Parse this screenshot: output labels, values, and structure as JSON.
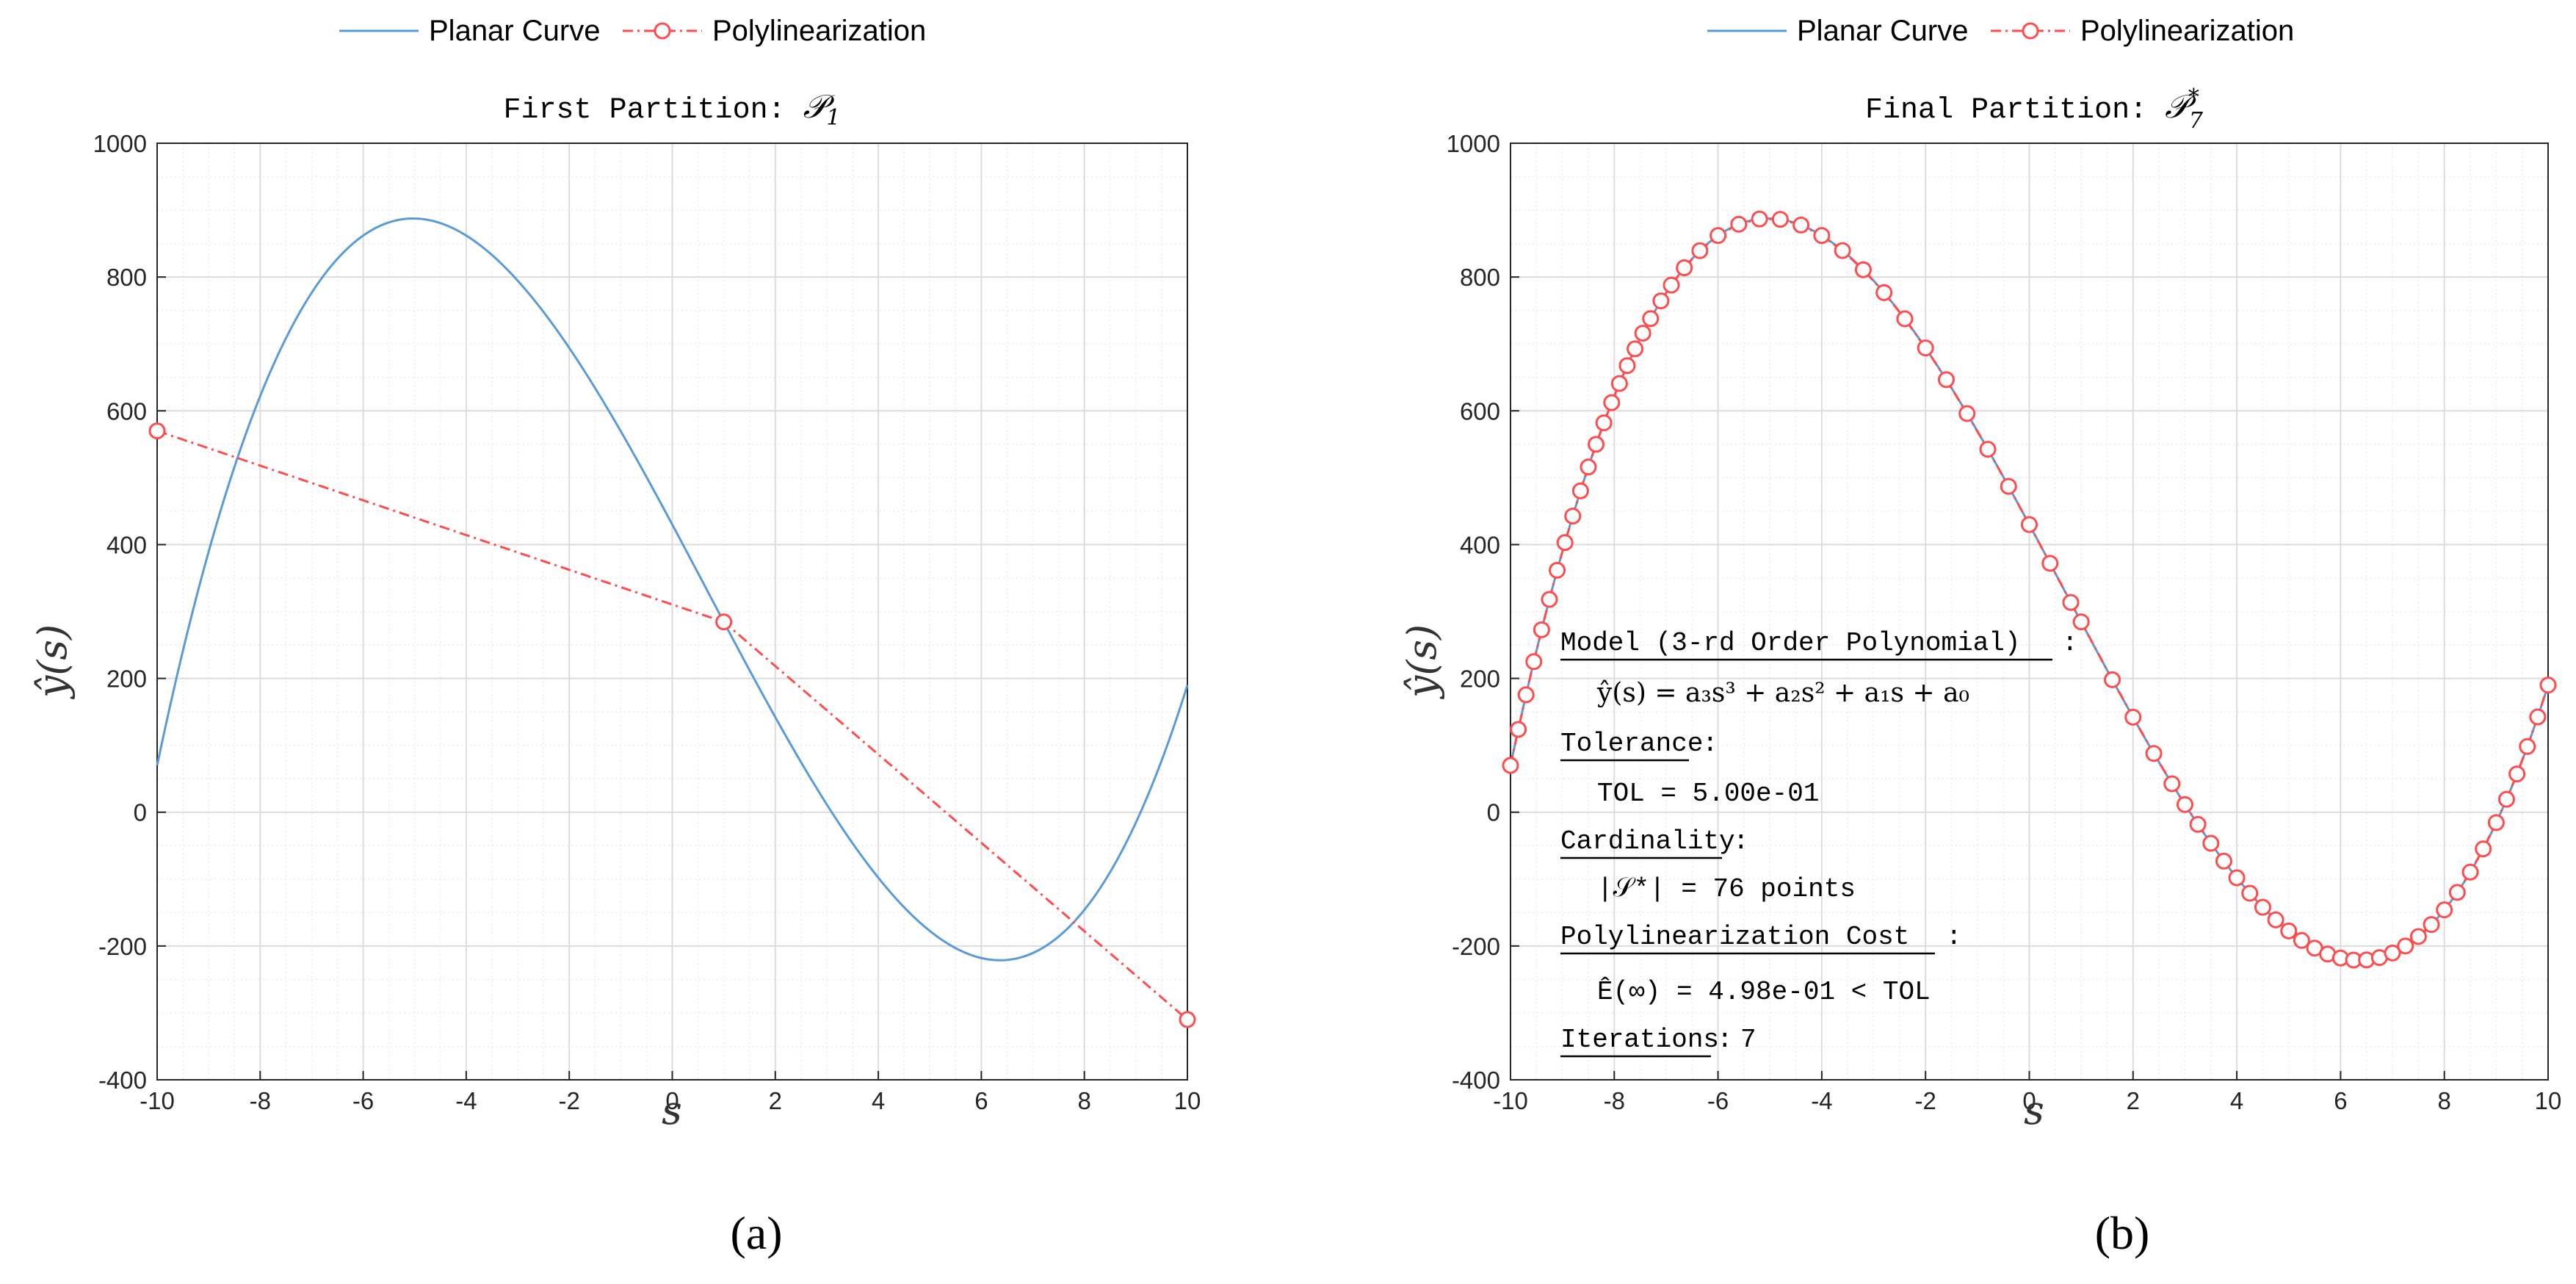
{
  "chart_data": [
    {
      "type": "line",
      "panel": "a",
      "title_prefix": "First Partition: ",
      "title_symbol": "𝒫",
      "title_sub": "1",
      "xlabel": "s",
      "ylabel": "ŷ(s)",
      "xlim": [
        -10,
        10
      ],
      "ylim": [
        -400,
        1000
      ],
      "xticks": [
        -10,
        -8,
        -6,
        -4,
        -2,
        0,
        2,
        4,
        6,
        8,
        10
      ],
      "yticks": [
        -400,
        -200,
        0,
        200,
        400,
        600,
        800,
        1000
      ],
      "grid": true,
      "minor_grid": true,
      "legend": [
        "Planar Curve",
        "Polylinearization"
      ],
      "legend_position": "top-center-outside",
      "series": [
        {
          "name": "Planar Curve",
          "kind": "function",
          "coefficients": {
            "a3": 1.5,
            "a2": -3,
            "a1": -144,
            "a0": 430
          },
          "color": "#5b9bd5"
        },
        {
          "name": "Polylinearization",
          "x": [
            -10,
            1,
            10
          ],
          "y": [
            570,
            284.5,
            -310
          ],
          "color": "#ff4d4d"
        }
      ],
      "caption": "(a)"
    },
    {
      "type": "line",
      "panel": "b",
      "title_prefix": "Final Partition: ",
      "title_symbol": "𝒫",
      "title_sub": "7",
      "title_sup": "*",
      "xlabel": "s",
      "ylabel": "ŷ(s)",
      "xlim": [
        -10,
        10
      ],
      "ylim": [
        -400,
        1000
      ],
      "xticks": [
        -10,
        -8,
        -6,
        -4,
        -2,
        0,
        2,
        4,
        6,
        8,
        10
      ],
      "yticks": [
        -400,
        -200,
        0,
        200,
        400,
        600,
        800,
        1000
      ],
      "grid": true,
      "minor_grid": true,
      "legend": [
        "Planar Curve",
        "Polylinearization"
      ],
      "legend_position": "top-center-outside",
      "series": [
        {
          "name": "Planar Curve",
          "kind": "function",
          "coefficients": {
            "a3": 1.5,
            "a2": -3,
            "a1": -144,
            "a0": 430
          },
          "color": "#5b9bd5"
        },
        {
          "name": "Polylinearization",
          "x": [
            -10,
            -9.85,
            -9.7,
            -9.55,
            -9.4,
            -9.25,
            -9.1,
            -8.95,
            -8.8,
            -8.65,
            -8.5,
            -8.35,
            -8.2,
            -8.05,
            -7.9,
            -7.75,
            -7.6,
            -7.45,
            -7.3,
            -7.1,
            -6.9,
            -6.65,
            -6.35,
            -6.0,
            -5.6,
            -5.2,
            -4.8,
            -4.4,
            -4.0,
            -3.6,
            -3.2,
            -2.8,
            -2.4,
            -2.0,
            -1.6,
            -1.2,
            -0.8,
            -0.4,
            0.0,
            0.4,
            0.8,
            1.0,
            1.6,
            2.0,
            2.4,
            2.75,
            3.0,
            3.25,
            3.5,
            3.75,
            4.0,
            4.25,
            4.5,
            4.75,
            5.0,
            5.25,
            5.5,
            5.75,
            6.0,
            6.25,
            6.5,
            6.75,
            7.0,
            7.25,
            7.5,
            7.75,
            8.0,
            8.25,
            8.5,
            8.75,
            9.0,
            9.2,
            9.4,
            9.6,
            9.8,
            10.0
          ],
          "color": "#ff4d4d"
        }
      ],
      "annotation": {
        "model_label": "Model (3-rd Order Polynomial)",
        "model_equation": "ŷ(s) = a₃s³ + a₂s² + a₁s + a₀",
        "tolerance_label": "Tolerance",
        "tolerance_value": "TOL = 5.00e-01",
        "cardinality_label": "Cardinality",
        "cardinality_value": "|𝒮*| = 76 points",
        "cost_label": "Polylinearization Cost",
        "cost_value": "Ê(∞) = 4.98e-01 < TOL",
        "iterations_label": "Iterations",
        "iterations_value": "7"
      },
      "caption": "(b)"
    }
  ],
  "colors": {
    "curve": "#5b9bd5",
    "poly": "#ff4d4d",
    "grid_major": "#dcdcdc",
    "grid_minor": "#ececec",
    "axis": "#262626"
  }
}
